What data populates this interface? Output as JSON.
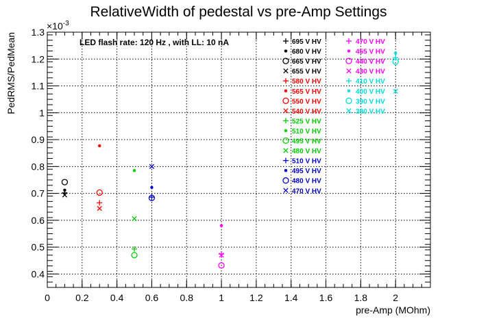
{
  "chart_data": {
    "type": "scatter",
    "title": "RelativeWidth of pedestal vs pre-Amp Settings",
    "xlabel": "pre-Amp (MOhm)",
    "ylabel": "PedRMS/PedMean",
    "exponent_label": "×10",
    "exponent_power": "-3",
    "annotation": "LED flash rate: 120 Hz , with LL: 10 nA",
    "xlim": [
      0,
      2.2
    ],
    "ylim": [
      0.35,
      1.3
    ],
    "grid": true,
    "legend_position": "top-right",
    "x_ticks": [
      {
        "value": 0,
        "label": "0"
      },
      {
        "value": 0.2,
        "label": "0.2"
      },
      {
        "value": 0.4,
        "label": "0.4"
      },
      {
        "value": 0.6,
        "label": "0.6"
      },
      {
        "value": 0.8,
        "label": "0.8"
      },
      {
        "value": 1.0,
        "label": "1"
      },
      {
        "value": 1.2,
        "label": "1.2"
      },
      {
        "value": 1.4,
        "label": "1.4"
      },
      {
        "value": 1.6,
        "label": "1.6"
      },
      {
        "value": 1.8,
        "label": "1.8"
      },
      {
        "value": 2.0,
        "label": "2"
      }
    ],
    "y_ticks": [
      {
        "value": 0.4,
        "label": "0.4"
      },
      {
        "value": 0.5,
        "label": "0.5"
      },
      {
        "value": 0.6,
        "label": "0.6"
      },
      {
        "value": 0.7,
        "label": "0.7"
      },
      {
        "value": 0.8,
        "label": "0.8"
      },
      {
        "value": 0.9,
        "label": "0.9"
      },
      {
        "value": 1.0,
        "label": "1"
      },
      {
        "value": 1.1,
        "label": "1.1"
      },
      {
        "value": 1.2,
        "label": "1.2"
      },
      {
        "value": 1.3,
        "label": "1.3"
      }
    ],
    "series": [
      {
        "name": "695 V HV",
        "color": "#000000",
        "marker": "plus",
        "points": [
          [
            0.1,
            0.702
          ]
        ]
      },
      {
        "name": "680 V HV",
        "color": "#000000",
        "marker": "star",
        "points": [
          [
            0.1,
            0.712
          ]
        ]
      },
      {
        "name": "665 V HV",
        "color": "#000000",
        "marker": "circle",
        "points": [
          [
            0.1,
            0.742
          ]
        ]
      },
      {
        "name": "655 V HV",
        "color": "#000000",
        "marker": "cross",
        "points": [
          [
            0.1,
            0.694
          ]
        ]
      },
      {
        "name": "580 V HV",
        "color": "#ff0000",
        "marker": "plus",
        "points": [
          [
            0.3,
            0.665
          ]
        ]
      },
      {
        "name": "565 V HV",
        "color": "#ff0000",
        "marker": "star",
        "points": [
          [
            0.3,
            0.877
          ]
        ]
      },
      {
        "name": "550 V HV",
        "color": "#ff0000",
        "marker": "circle",
        "points": [
          [
            0.3,
            0.703
          ]
        ]
      },
      {
        "name": "540 V HV",
        "color": "#ff0000",
        "marker": "cross",
        "points": [
          [
            0.3,
            0.644
          ]
        ]
      },
      {
        "name": "525 V HV",
        "color": "#00cc00",
        "marker": "plus",
        "points": [
          [
            0.5,
            0.493
          ]
        ]
      },
      {
        "name": "510 V HV",
        "color": "#00cc00",
        "marker": "star",
        "points": [
          [
            0.5,
            0.785
          ]
        ]
      },
      {
        "name": "495 V HV",
        "color": "#00cc00",
        "marker": "circle",
        "points": [
          [
            0.5,
            0.47
          ]
        ]
      },
      {
        "name": "480 V HV",
        "color": "#00cc00",
        "marker": "cross",
        "points": [
          [
            0.5,
            0.606
          ]
        ]
      },
      {
        "name": "510 V HV",
        "color": "#0000cc",
        "marker": "plus",
        "points": [
          [
            0.6,
            0.686
          ]
        ]
      },
      {
        "name": "495 V HV",
        "color": "#0000cc",
        "marker": "star",
        "points": [
          [
            0.6,
            0.722
          ]
        ]
      },
      {
        "name": "480 V HV",
        "color": "#0000cc",
        "marker": "circle",
        "points": [
          [
            0.6,
            0.683
          ]
        ]
      },
      {
        "name": "470 V HV",
        "color": "#0000cc",
        "marker": "cross",
        "points": [
          [
            0.6,
            0.8
          ]
        ]
      },
      {
        "name": "470 V HV",
        "color": "#ff00ff",
        "marker": "plus",
        "points": [
          [
            1.0,
            0.474
          ]
        ]
      },
      {
        "name": "455 V HV",
        "color": "#ff00ff",
        "marker": "star",
        "points": [
          [
            1.0,
            0.58
          ]
        ]
      },
      {
        "name": "440 V HV",
        "color": "#ff00ff",
        "marker": "circle",
        "points": [
          [
            1.0,
            0.432
          ]
        ]
      },
      {
        "name": "430 V HV",
        "color": "#ff00ff",
        "marker": "cross",
        "points": [
          [
            1.0,
            0.47
          ]
        ]
      },
      {
        "name": "410 V HV",
        "color": "#00dddd",
        "marker": "plus",
        "points": [
          [
            2.0,
            1.205
          ]
        ]
      },
      {
        "name": "400 V HV",
        "color": "#00dddd",
        "marker": "star",
        "points": [
          [
            2.0,
            1.222
          ]
        ]
      },
      {
        "name": "390 V HV",
        "color": "#00dddd",
        "marker": "circle",
        "points": [
          [
            2.0,
            1.19
          ]
        ]
      },
      {
        "name": "380 V HV",
        "color": "#00dddd",
        "marker": "cross",
        "points": [
          [
            2.0,
            1.08
          ]
        ]
      }
    ]
  }
}
